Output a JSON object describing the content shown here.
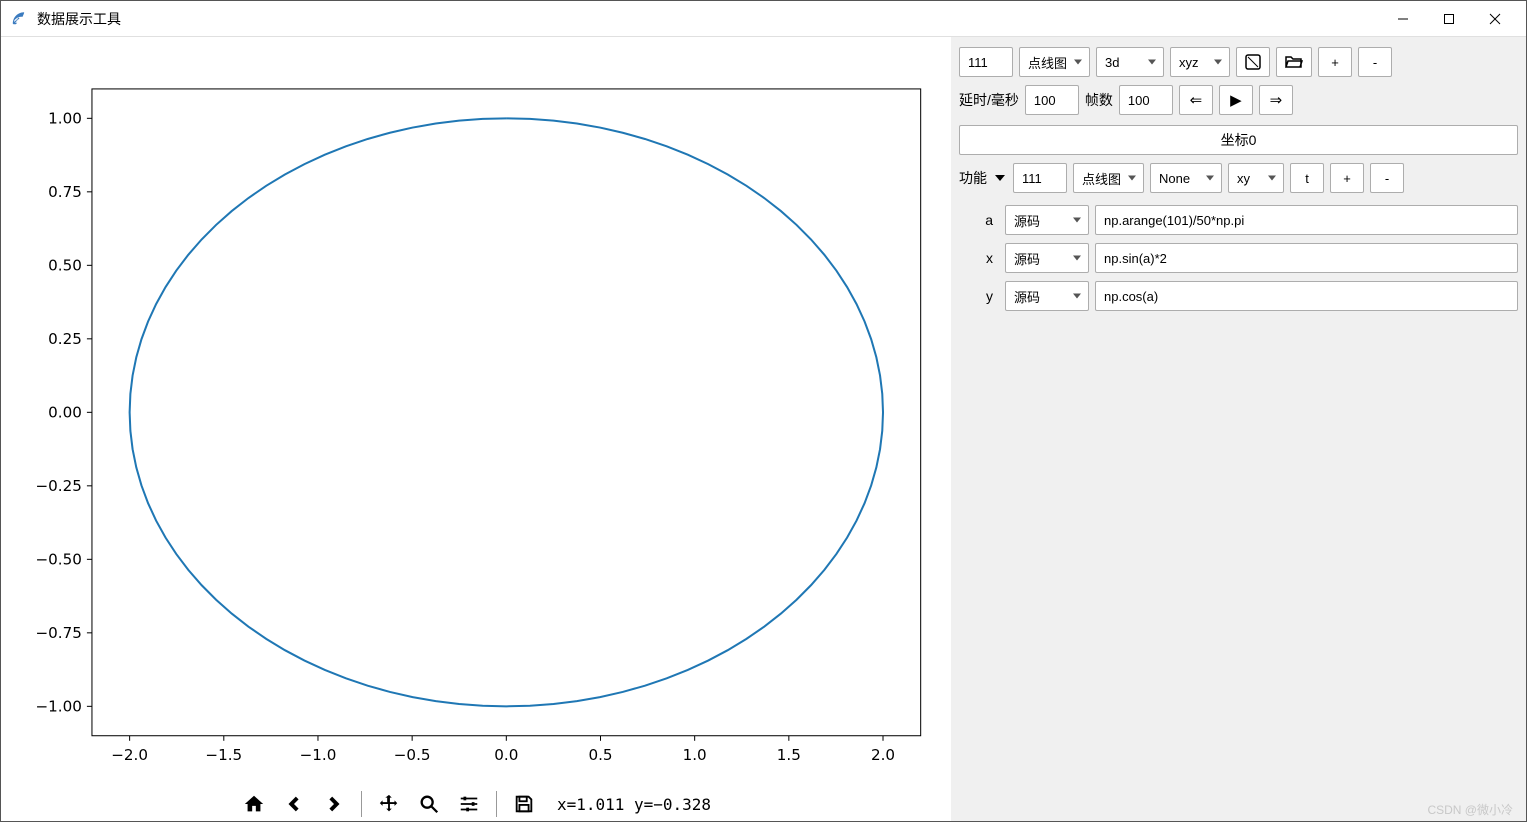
{
  "window": {
    "title": "数据展示工具"
  },
  "chart": {
    "type": "line",
    "xlim": [
      -2.2,
      2.2
    ],
    "ylim": [
      -1.1,
      1.1
    ],
    "xticks": [
      -2.0,
      -1.5,
      -1.0,
      -0.5,
      0.0,
      0.5,
      1.0,
      1.5,
      2.0
    ],
    "yticks": [
      -1.0,
      -0.75,
      -0.5,
      -0.25,
      0.0,
      0.25,
      0.5,
      0.75,
      1.0
    ],
    "xtick_labels": [
      "−2.0",
      "−1.5",
      "−1.0",
      "−0.5",
      "0.0",
      "0.5",
      "1.0",
      "1.5",
      "2.0"
    ],
    "ytick_labels": [
      "−1.00",
      "−0.75",
      "−0.50",
      "−0.25",
      "0.00",
      "0.25",
      "0.50",
      "0.75",
      "1.00"
    ],
    "line_color": "#1f77b4",
    "line_width": 2,
    "background_color": "#ffffff",
    "axes_border_color": "#000000",
    "tick_font_size": 15,
    "param_expr": "np.arange(101)/50*np.pi",
    "x_expr": "np.sin(a)*2",
    "y_expr": "np.cos(a)",
    "n_points": 101
  },
  "mpl_toolbar": {
    "coord_readout": "x=1.011 y=−0.328"
  },
  "sidebar": {
    "row1": {
      "subplot_value": "111",
      "plot_type": "点线图",
      "dim_type": "3d",
      "axes_type": "xyz",
      "checkbox_icon": "☐",
      "open_icon": "open",
      "add_label": "+",
      "remove_label": "-"
    },
    "row2": {
      "delay_label": "延时/毫秒",
      "delay_value": "100",
      "frames_label": "帧数",
      "frames_value": "100",
      "prev_icon": "⇐",
      "play_icon": "▶",
      "next_icon": "⇒"
    },
    "coord_section_label": "坐标0",
    "row3": {
      "func_label": "功能",
      "subplot_value": "111",
      "plot_type": "点线图",
      "style_type": "None",
      "axes_type": "xy",
      "t_label": "t",
      "add_label": "+",
      "remove_label": "-"
    },
    "formulas": {
      "source_label": "源码",
      "a": {
        "label": "a",
        "value": "np.arange(101)/50*np.pi"
      },
      "x": {
        "label": "x",
        "value": "np.sin(a)*2"
      },
      "y": {
        "label": "y",
        "value": "np.cos(a)"
      }
    }
  },
  "watermark": "CSDN @微小冷"
}
